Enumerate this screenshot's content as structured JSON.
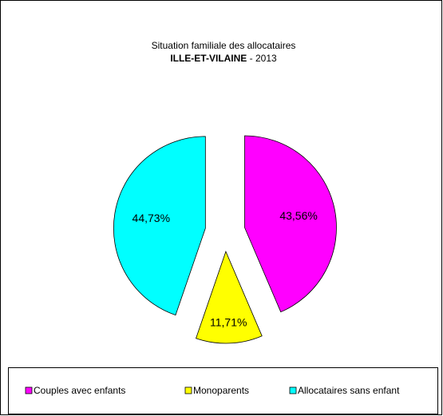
{
  "chart_data": {
    "type": "pie",
    "title": "Situation familiale des allocataires",
    "subtitle": {
      "bold": "ILLE-ET-VILAINE",
      "rest": " - 2013"
    },
    "categories": [
      "Couples avec enfants",
      "Monoparents",
      "Allocataires sans enfant"
    ],
    "values": [
      43.56,
      11.71,
      44.73
    ],
    "value_labels": [
      "43,56%",
      "11,71%",
      "44,73%"
    ],
    "colors": [
      "#ff00ff",
      "#ffff00",
      "#00ffff"
    ],
    "legend": "bottom"
  }
}
